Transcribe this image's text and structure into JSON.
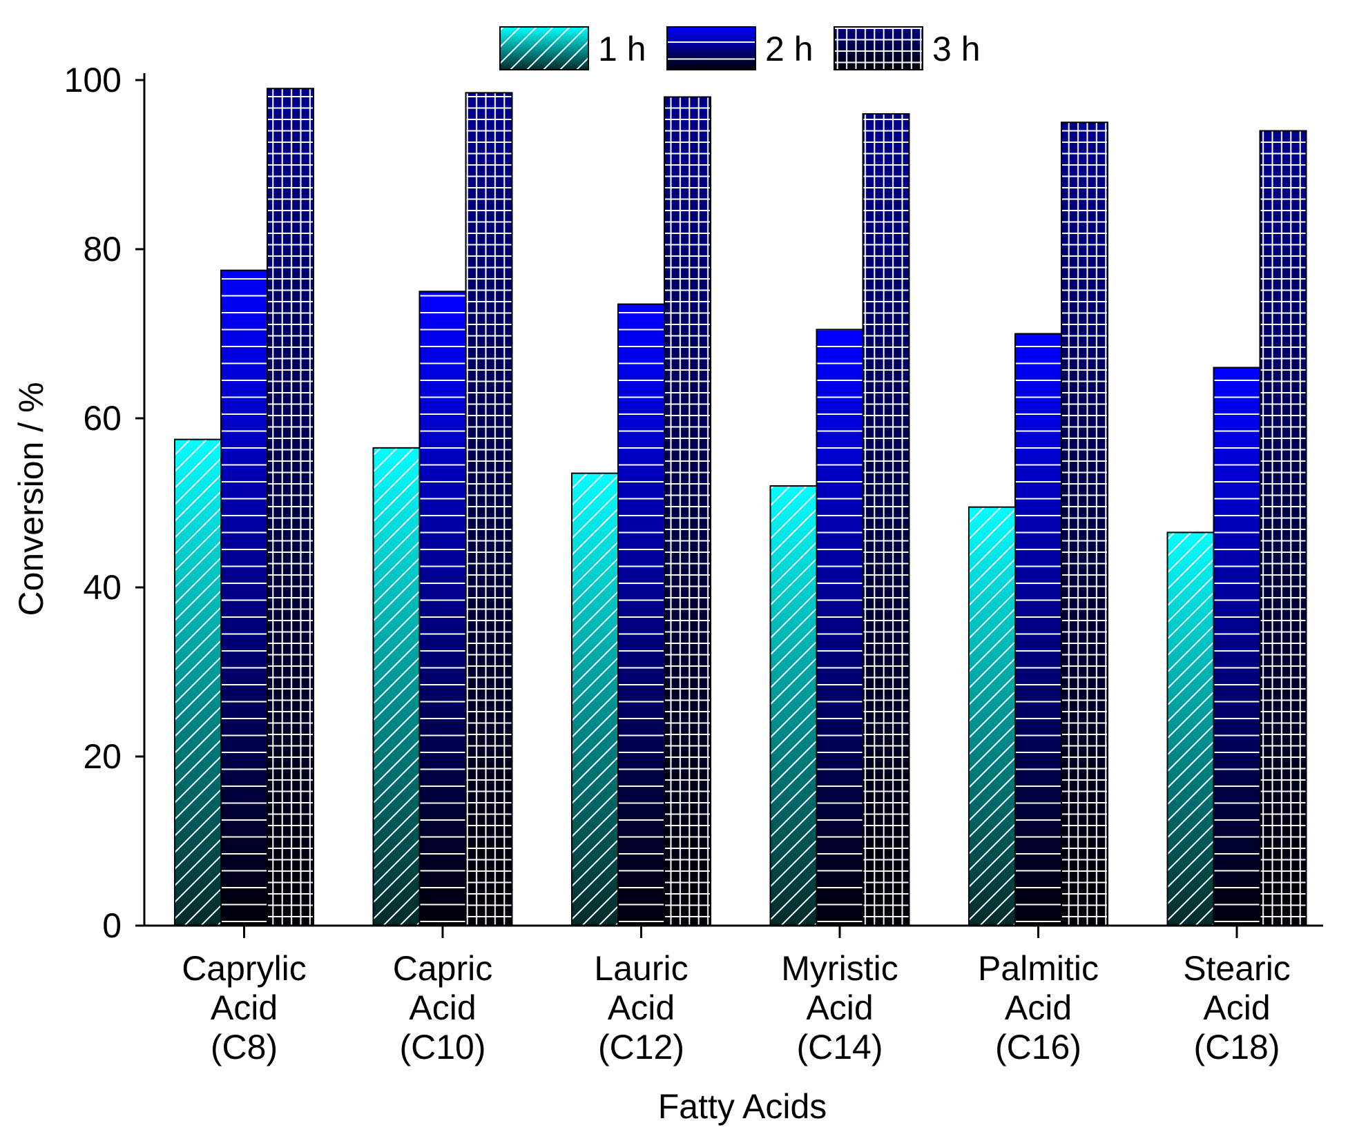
{
  "chart_data": {
    "type": "bar",
    "title": "",
    "xlabel": "Fatty Acids",
    "ylabel": "Conversion / %",
    "ylim": [
      0,
      100
    ],
    "yticks": [
      0,
      20,
      40,
      60,
      80,
      100
    ],
    "grid": false,
    "legend_position": "top-center",
    "categories": [
      [
        "Caprylic",
        "Acid",
        "(C8)"
      ],
      [
        "Capric",
        "Acid",
        "(C10)"
      ],
      [
        "Lauric",
        "Acid",
        "(C12)"
      ],
      [
        "Myristic",
        "Acid",
        "(C14)"
      ],
      [
        "Palmitic",
        "Acid",
        "(C16)"
      ],
      [
        "Stearic",
        "Acid",
        "(C18)"
      ]
    ],
    "series": [
      {
        "name": "1 h",
        "pattern": "diagonal",
        "color_top": "#00ffff",
        "color_bottom": "#002a2a",
        "values": [
          57.5,
          56.5,
          53.5,
          52.0,
          49.5,
          46.5
        ]
      },
      {
        "name": "2 h",
        "pattern": "horizontal",
        "color_top": "#0000ff",
        "color_bottom": "#00000a",
        "values": [
          77.5,
          75.0,
          73.5,
          70.5,
          70.0,
          66.0
        ]
      },
      {
        "name": "3 h",
        "pattern": "grid",
        "color_top": "#00008b",
        "color_bottom": "#000005",
        "values": [
          99.0,
          98.5,
          98.0,
          96.0,
          95.0,
          94.0
        ]
      }
    ]
  }
}
